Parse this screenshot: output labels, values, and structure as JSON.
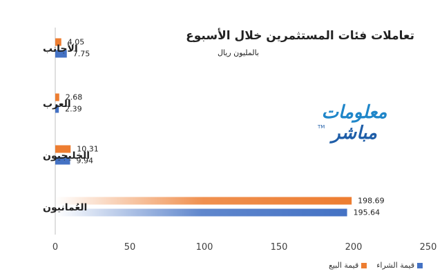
{
  "chart_data": {
    "type": "bar",
    "orientation": "horizontal",
    "title": "تعاملات فئات المستثمرين خلال الأسبوع",
    "subtitle": "بالمليون ريال",
    "categories": [
      "الأجانب",
      "العرب",
      "الخليجيون",
      "العُمانيون"
    ],
    "series": [
      {
        "name": "قيمة البيع",
        "color": "#ED7D31",
        "values": [
          4.05,
          2.68,
          10.31,
          198.69
        ]
      },
      {
        "name": "قيمة الشراء",
        "color": "#4472C4",
        "values": [
          7.75,
          2.39,
          9.94,
          195.64
        ]
      }
    ],
    "value_labels": {
      "sell": [
        "4.05",
        "2.68",
        "10.31",
        "198.69"
      ],
      "buy": [
        "7.75",
        "2.39",
        "9.94",
        "195.64"
      ]
    },
    "xlim": [
      0,
      250
    ],
    "xticks": [
      "0",
      "50",
      "100",
      "150",
      "200",
      "250"
    ],
    "grid": false,
    "legend_position": "bottom-right"
  },
  "logo": {
    "line1": "معلومات",
    "line2": "مباشر",
    "tm": "TM"
  },
  "legend_items": [
    {
      "label": "قيمة الشراء",
      "color": "#4472C4"
    },
    {
      "label": "قيمة البيع",
      "color": "#ED7D31"
    }
  ]
}
